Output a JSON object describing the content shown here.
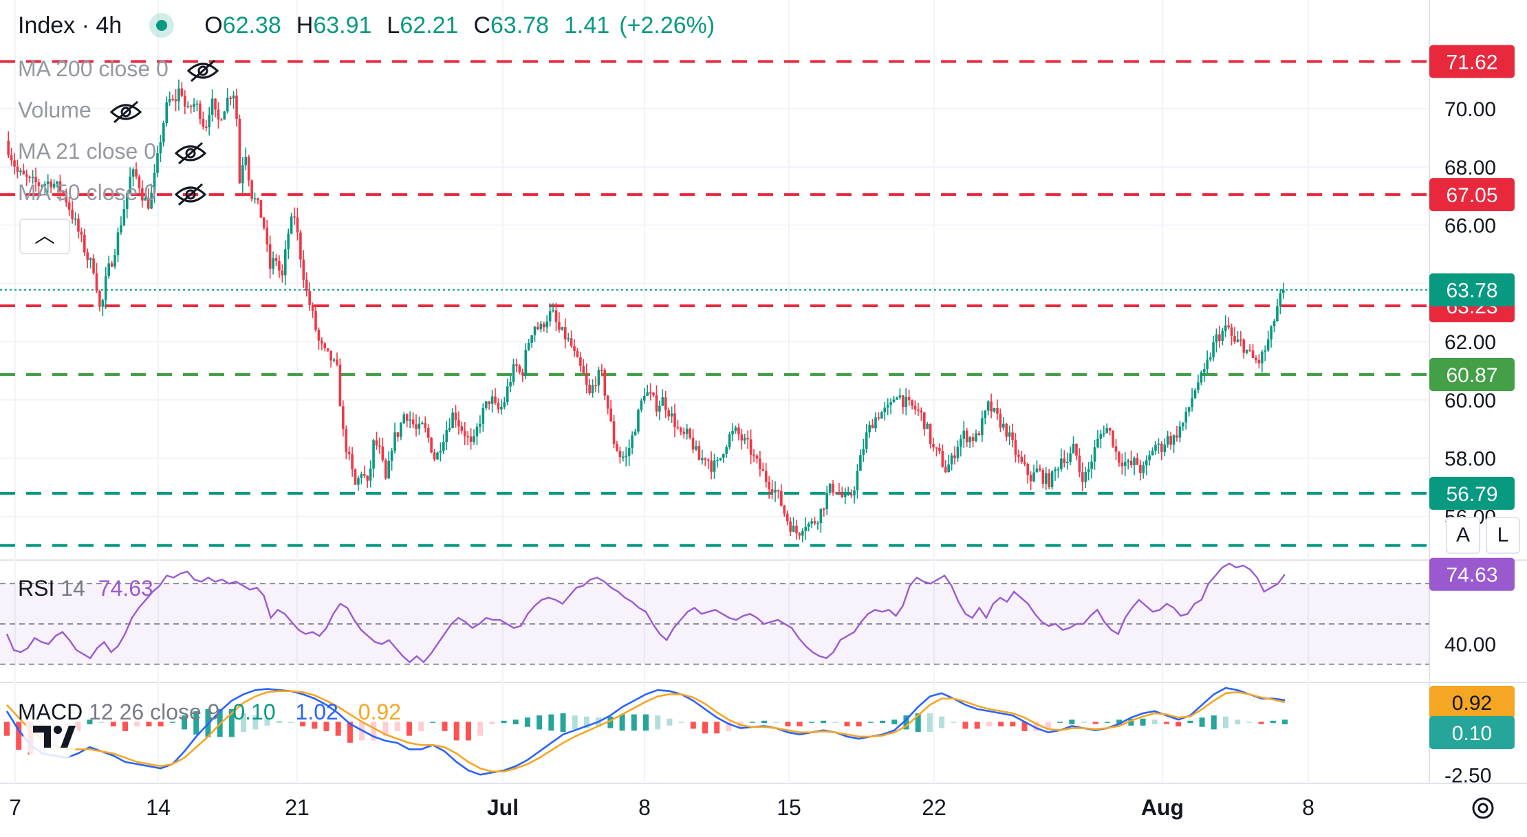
{
  "header": {
    "symbol": "Index",
    "timeframe": "4h",
    "title": "Index · 4h",
    "ohlc": {
      "o_label": "O",
      "o": "62.38",
      "h_label": "H",
      "h": "63.91",
      "l_label": "L",
      "l": "62.21",
      "c_label": "C",
      "c": "63.78",
      "change": "1.41",
      "change_pct": "(+2.26%)"
    }
  },
  "indicators": [
    {
      "label": "MA 200 close 0",
      "icon": "eye-crossed-icon"
    },
    {
      "label": "Volume",
      "icon": "eye-crossed-icon"
    },
    {
      "label": "MA 21 close 0",
      "icon": "eye-crossed-icon"
    },
    {
      "label": "MA 50 close 0",
      "icon": "eye-crossed-icon"
    }
  ],
  "collapse_icon": "chevron-up-icon",
  "colors": {
    "up": "#089981",
    "down": "#f23645",
    "rsi": "#9b59d0",
    "macd": "#2962ff",
    "signal": "#f5a623",
    "red_line": "#e8293d",
    "green_line": "#43a047",
    "teal_line": "#089981"
  },
  "chart_data": [
    {
      "type": "candlestick",
      "x_ticks": [
        "7",
        "14",
        "21",
        "Jul",
        "8",
        "15",
        "22",
        "Aug",
        "8"
      ],
      "y_ticks": [
        "70.00",
        "68.00",
        "66.00",
        "62.00",
        "60.00",
        "58.00",
        "56.00"
      ],
      "ylim": [
        54.9,
        72.6
      ],
      "last_price": 63.78,
      "horizontal_levels": [
        {
          "value": 71.62,
          "label": "71.62",
          "color": "#e8293d",
          "style": "dashed"
        },
        {
          "value": 67.05,
          "label": "67.05",
          "color": "#e8293d",
          "style": "dashed"
        },
        {
          "value": 63.23,
          "label": "63.23",
          "color": "#e8293d",
          "style": "dashed"
        },
        {
          "value": 60.87,
          "label": "60.87",
          "color": "#43a047",
          "style": "dashed"
        },
        {
          "value": 56.79,
          "label": "56.79",
          "color": "#089981",
          "style": "dashed"
        },
        {
          "value": 55.0,
          "label": "",
          "color": "#089981",
          "style": "dashed"
        }
      ],
      "price_path": [
        [
          0,
          68.9
        ],
        [
          8,
          67.8
        ],
        [
          16,
          67.5
        ],
        [
          22,
          67.4
        ],
        [
          30,
          67.5
        ],
        [
          38,
          67.1
        ],
        [
          46,
          66.0
        ],
        [
          54,
          64.8
        ],
        [
          58,
          64.5
        ],
        [
          62,
          62.9
        ],
        [
          66,
          64.3
        ],
        [
          70,
          64.9
        ],
        [
          74,
          65.8
        ],
        [
          78,
          66.8
        ],
        [
          82,
          67.8
        ],
        [
          86,
          67.6
        ],
        [
          90,
          66.9
        ],
        [
          94,
          66.7
        ],
        [
          98,
          67.9
        ],
        [
          102,
          69.3
        ],
        [
          106,
          70.3
        ],
        [
          110,
          70.2
        ],
        [
          114,
          70.8
        ],
        [
          118,
          69.8
        ],
        [
          122,
          70.2
        ],
        [
          126,
          70.0
        ],
        [
          130,
          69.3
        ],
        [
          134,
          70.3
        ],
        [
          138,
          69.5
        ],
        [
          142,
          70.0
        ],
        [
          146,
          70.5
        ],
        [
          150,
          70.6
        ],
        [
          152,
          67.3
        ],
        [
          156,
          68.7
        ],
        [
          160,
          67.1
        ],
        [
          164,
          66.7
        ],
        [
          168,
          66.1
        ],
        [
          172,
          64.5
        ],
        [
          176,
          64.9
        ],
        [
          180,
          64.1
        ],
        [
          184,
          65.7
        ],
        [
          188,
          66.4
        ],
        [
          192,
          65.0
        ],
        [
          196,
          63.7
        ],
        [
          200,
          62.9
        ],
        [
          204,
          62.0
        ],
        [
          208,
          61.6
        ],
        [
          212,
          61.4
        ],
        [
          216,
          61.0
        ],
        [
          220,
          58.8
        ],
        [
          224,
          57.9
        ],
        [
          228,
          57.0
        ],
        [
          232,
          57.6
        ],
        [
          236,
          57.0
        ],
        [
          240,
          58.6
        ],
        [
          244,
          58.2
        ],
        [
          248,
          57.1
        ],
        [
          252,
          58.6
        ],
        [
          256,
          58.9
        ],
        [
          260,
          59.6
        ],
        [
          264,
          59.3
        ],
        [
          268,
          58.9
        ],
        [
          272,
          59.1
        ],
        [
          276,
          58.6
        ],
        [
          280,
          57.9
        ],
        [
          284,
          58.6
        ],
        [
          288,
          59.1
        ],
        [
          292,
          59.6
        ],
        [
          296,
          59.1
        ],
        [
          300,
          58.8
        ],
        [
          304,
          58.3
        ],
        [
          308,
          59.2
        ],
        [
          312,
          59.7
        ],
        [
          316,
          60.1
        ],
        [
          320,
          59.6
        ],
        [
          324,
          59.8
        ],
        [
          328,
          60.6
        ],
        [
          332,
          61.2
        ],
        [
          336,
          60.8
        ],
        [
          340,
          61.9
        ],
        [
          344,
          62.6
        ],
        [
          348,
          62.4
        ],
        [
          352,
          62.8
        ],
        [
          356,
          63.0
        ],
        [
          360,
          62.4
        ],
        [
          364,
          62.2
        ],
        [
          368,
          61.9
        ],
        [
          372,
          61.3
        ],
        [
          376,
          60.9
        ],
        [
          380,
          60.1
        ],
        [
          384,
          60.7
        ],
        [
          388,
          60.9
        ],
        [
          392,
          59.8
        ],
        [
          396,
          58.6
        ],
        [
          400,
          58.1
        ],
        [
          404,
          58.0
        ],
        [
          408,
          58.7
        ],
        [
          412,
          59.5
        ],
        [
          416,
          60.3
        ],
        [
          420,
          60.1
        ],
        [
          424,
          59.8
        ],
        [
          428,
          60.0
        ],
        [
          432,
          59.6
        ],
        [
          436,
          59.2
        ],
        [
          440,
          58.7
        ],
        [
          444,
          58.8
        ],
        [
          448,
          58.4
        ],
        [
          452,
          57.9
        ],
        [
          456,
          58.1
        ],
        [
          460,
          57.7
        ],
        [
          464,
          57.8
        ],
        [
          468,
          58.4
        ],
        [
          472,
          58.8
        ],
        [
          476,
          58.9
        ],
        [
          480,
          58.6
        ],
        [
          484,
          58.4
        ],
        [
          488,
          57.9
        ],
        [
          492,
          57.6
        ],
        [
          496,
          57.2
        ],
        [
          500,
          57.0
        ],
        [
          504,
          56.6
        ],
        [
          508,
          56.0
        ],
        [
          512,
          55.6
        ],
        [
          516,
          55.4
        ],
        [
          520,
          55.8
        ],
        [
          524,
          55.7
        ],
        [
          528,
          55.9
        ],
        [
          532,
          56.3
        ],
        [
          536,
          56.9
        ],
        [
          540,
          57.0
        ],
        [
          544,
          56.7
        ],
        [
          548,
          56.5
        ],
        [
          552,
          56.9
        ],
        [
          556,
          57.8
        ],
        [
          560,
          58.7
        ],
        [
          564,
          59.2
        ],
        [
          568,
          59.5
        ],
        [
          572,
          59.6
        ],
        [
          576,
          59.7
        ],
        [
          580,
          60.3
        ],
        [
          584,
          60.0
        ],
        [
          588,
          59.8
        ],
        [
          592,
          59.7
        ],
        [
          596,
          59.5
        ],
        [
          600,
          59.0
        ],
        [
          604,
          58.3
        ],
        [
          608,
          58.1
        ],
        [
          612,
          57.6
        ],
        [
          616,
          57.9
        ],
        [
          620,
          58.5
        ],
        [
          624,
          58.8
        ],
        [
          628,
          58.7
        ],
        [
          632,
          58.7
        ],
        [
          636,
          59.2
        ],
        [
          640,
          59.8
        ],
        [
          644,
          59.5
        ],
        [
          648,
          59.2
        ],
        [
          652,
          58.9
        ],
        [
          656,
          58.4
        ],
        [
          660,
          57.9
        ],
        [
          664,
          57.6
        ],
        [
          668,
          57.3
        ],
        [
          672,
          57.6
        ],
        [
          676,
          57.3
        ],
        [
          680,
          57.2
        ],
        [
          684,
          57.6
        ],
        [
          688,
          58.1
        ],
        [
          692,
          57.9
        ],
        [
          696,
          58.4
        ],
        [
          700,
          57.4
        ],
        [
          704,
          57.4
        ],
        [
          708,
          58.1
        ],
        [
          712,
          58.7
        ],
        [
          716,
          59.1
        ],
        [
          720,
          58.8
        ],
        [
          724,
          58.0
        ],
        [
          728,
          57.9
        ],
        [
          732,
          57.7
        ],
        [
          736,
          57.9
        ],
        [
          740,
          57.5
        ],
        [
          744,
          57.9
        ],
        [
          748,
          58.5
        ],
        [
          752,
          58.3
        ],
        [
          756,
          58.7
        ],
        [
          760,
          58.6
        ],
        [
          764,
          59.0
        ],
        [
          768,
          59.3
        ],
        [
          772,
          60.0
        ],
        [
          776,
          60.6
        ],
        [
          780,
          60.8
        ],
        [
          784,
          61.5
        ],
        [
          788,
          62.1
        ],
        [
          792,
          62.3
        ],
        [
          796,
          62.5
        ],
        [
          800,
          61.9
        ],
        [
          804,
          62.0
        ],
        [
          808,
          61.7
        ],
        [
          812,
          61.4
        ],
        [
          816,
          61.3
        ],
        [
          820,
          61.7
        ],
        [
          824,
          62.3
        ],
        [
          828,
          63.2
        ],
        [
          832,
          63.78
        ]
      ]
    },
    {
      "type": "line",
      "name": "RSI",
      "label": "RSI",
      "params": "14",
      "value": "74.63",
      "y_ticks": [
        "40.00"
      ],
      "bands": [
        70,
        50,
        30
      ],
      "ylim": [
        22,
        80
      ],
      "values": [
        45,
        37,
        36,
        38,
        43,
        41,
        40,
        44,
        46,
        42,
        37,
        35,
        33,
        38,
        41,
        36,
        39,
        45,
        53,
        58,
        62,
        66,
        69,
        74,
        73,
        75,
        76,
        72,
        71,
        73,
        71,
        72,
        70,
        71,
        69,
        67,
        68,
        64,
        53,
        57,
        55,
        51,
        47,
        45,
        46,
        44,
        48,
        55,
        60,
        58,
        52,
        47,
        44,
        41,
        40,
        42,
        38,
        34,
        31,
        34,
        31,
        35,
        40,
        45,
        50,
        53,
        51,
        48,
        50,
        53,
        52,
        52,
        50,
        48,
        49,
        55,
        59,
        62,
        63,
        62,
        60,
        64,
        68,
        69,
        72,
        73,
        71,
        68,
        66,
        63,
        61,
        58,
        56,
        50,
        45,
        42,
        48,
        52,
        56,
        58,
        55,
        56,
        57,
        55,
        53,
        52,
        54,
        55,
        53,
        50,
        51,
        52,
        50,
        48,
        43,
        39,
        36,
        34,
        33,
        36,
        42,
        44,
        46,
        51,
        55,
        57,
        56,
        57,
        54,
        59,
        69,
        73,
        71,
        70,
        72,
        74,
        69,
        61,
        55,
        53,
        58,
        53,
        60,
        63,
        61,
        66,
        63,
        60,
        55,
        51,
        49,
        50,
        47,
        48,
        50,
        50,
        54,
        57,
        51,
        47,
        45,
        53,
        58,
        62,
        59,
        56,
        57,
        60,
        58,
        54,
        55,
        60,
        62,
        70,
        74,
        78,
        80,
        78,
        79,
        77,
        73,
        66,
        68,
        70,
        74.63
      ]
    },
    {
      "type": "line",
      "name": "MACD",
      "label": "MACD",
      "params": "12 26 close 9",
      "histogram_value": "0.10",
      "macd_value": "1.02",
      "signal_value": "0.92",
      "y_ticks": [
        "-2.50"
      ],
      "ylim": [
        -2.75,
        1.7
      ],
      "macd": [
        0.5,
        -0.4,
        -1.1,
        -1.5,
        -1.6,
        -1.7,
        -1.5,
        -1.2,
        -1.4,
        -1.6,
        -1.9,
        -2.0,
        -2.1,
        -2.2,
        -2.0,
        -1.4,
        -0.7,
        -0.1,
        0.5,
        1.0,
        1.3,
        1.5,
        1.55,
        1.5,
        1.45,
        1.3,
        1.1,
        0.8,
        0.4,
        -0.1,
        -0.4,
        -0.7,
        -0.9,
        -1.0,
        -1.3,
        -1.3,
        -1.1,
        -1.4,
        -1.9,
        -2.3,
        -2.5,
        -2.4,
        -2.3,
        -2.1,
        -1.8,
        -1.4,
        -1.0,
        -0.6,
        -0.4,
        -0.2,
        0.0,
        0.3,
        0.7,
        1.0,
        1.3,
        1.5,
        1.45,
        1.3,
        1.0,
        0.6,
        0.2,
        -0.1,
        -0.3,
        -0.25,
        -0.2,
        -0.3,
        -0.5,
        -0.6,
        -0.5,
        -0.4,
        -0.5,
        -0.7,
        -0.8,
        -0.7,
        -0.6,
        -0.4,
        0.1,
        0.7,
        1.2,
        1.35,
        1.1,
        0.8,
        0.6,
        0.5,
        0.4,
        0.3,
        0.0,
        -0.3,
        -0.5,
        -0.4,
        -0.2,
        -0.3,
        -0.4,
        -0.3,
        -0.1,
        0.2,
        0.4,
        0.5,
        0.3,
        0.1,
        0.3,
        0.8,
        1.3,
        1.6,
        1.5,
        1.3,
        1.1,
        1.1,
        1.02
      ],
      "signal": [
        0.8,
        0.2,
        -0.4,
        -0.8,
        -1.1,
        -1.3,
        -1.3,
        -1.3,
        -1.4,
        -1.5,
        -1.7,
        -1.9,
        -2.0,
        -2.1,
        -2.0,
        -1.7,
        -1.2,
        -0.7,
        -0.1,
        0.4,
        0.9,
        1.2,
        1.4,
        1.45,
        1.45,
        1.4,
        1.25,
        1.0,
        0.7,
        0.35,
        0.0,
        -0.3,
        -0.6,
        -0.8,
        -1.0,
        -1.1,
        -1.1,
        -1.2,
        -1.5,
        -1.9,
        -2.2,
        -2.35,
        -2.35,
        -2.2,
        -2.0,
        -1.7,
        -1.35,
        -1.0,
        -0.7,
        -0.45,
        -0.2,
        0.05,
        0.35,
        0.65,
        0.95,
        1.2,
        1.3,
        1.3,
        1.15,
        0.85,
        0.45,
        0.1,
        -0.15,
        -0.25,
        -0.25,
        -0.3,
        -0.4,
        -0.5,
        -0.5,
        -0.45,
        -0.5,
        -0.6,
        -0.7,
        -0.7,
        -0.65,
        -0.5,
        -0.2,
        0.3,
        0.8,
        1.1,
        1.1,
        0.95,
        0.75,
        0.6,
        0.5,
        0.4,
        0.2,
        -0.1,
        -0.35,
        -0.4,
        -0.3,
        -0.3,
        -0.35,
        -0.3,
        -0.2,
        0.05,
        0.25,
        0.4,
        0.35,
        0.2,
        0.25,
        0.6,
        1.0,
        1.35,
        1.4,
        1.3,
        1.15,
        1.05,
        0.92
      ]
    }
  ],
  "axis_controls": {
    "auto": "A",
    "log": "L",
    "settings_icon": "gear-icon"
  },
  "branding": {
    "logo_text": "TV",
    "logo_icon": "tradingview-logo-icon"
  }
}
